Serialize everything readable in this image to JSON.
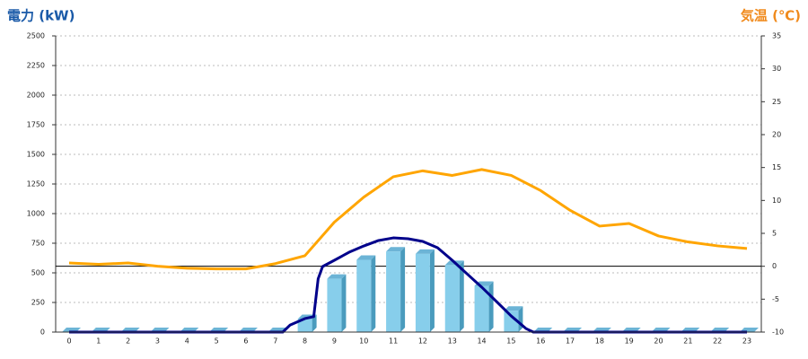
{
  "chart_data": {
    "type": "bar",
    "y_title": "電力 (kW)",
    "y2_title": "気温 (℃)",
    "categories": [
      "0",
      "1",
      "2",
      "3",
      "4",
      "5",
      "6",
      "7",
      "8",
      "9",
      "10",
      "11",
      "12",
      "13",
      "14",
      "15",
      "16",
      "17",
      "18",
      "19",
      "20",
      "21",
      "22",
      "23"
    ],
    "ylim": [
      0,
      2500
    ],
    "yticks": [
      0,
      250,
      500,
      750,
      1000,
      1250,
      1500,
      1750,
      2000,
      2250,
      2500
    ],
    "y2lim": [
      -10,
      35
    ],
    "y2ticks": [
      -10,
      -5,
      0,
      5,
      10,
      15,
      20,
      25,
      30,
      35
    ],
    "grid": true,
    "series": [
      {
        "type": "bar",
        "color": "#87ceeb",
        "values": [
          0,
          0,
          0,
          0,
          0,
          0,
          0,
          0,
          110,
          450,
          610,
          680,
          660,
          565,
          390,
          180,
          0,
          0,
          0,
          0,
          0,
          0,
          0,
          0
        ]
      },
      {
        "type": "line",
        "color": "#00008b",
        "x": [
          0,
          1,
          2,
          3,
          4,
          5,
          6,
          7,
          7.25,
          7.5,
          8,
          8.3,
          8.45,
          8.6,
          9,
          9.5,
          10,
          10.5,
          11,
          11.5,
          12,
          12.5,
          13,
          13.5,
          14,
          14.5,
          15,
          15.5,
          15.75,
          16,
          17,
          18,
          19,
          20,
          21,
          22,
          23
        ],
        "values": [
          0,
          0,
          0,
          0,
          0,
          0,
          0,
          0,
          0,
          60,
          114,
          130,
          450,
          553,
          606,
          674,
          727,
          773,
          795,
          788,
          765,
          712,
          606,
          492,
          379,
          258,
          136,
          30,
          0,
          0,
          0,
          0,
          0,
          0,
          0,
          0,
          0
        ]
      },
      {
        "type": "line",
        "color": "#ffa500",
        "axis": "y2",
        "values": [
          0.5,
          0.3,
          0.5,
          0,
          -0.3,
          -0.4,
          -0.4,
          0.4,
          1.6,
          6.7,
          10.5,
          13.6,
          14.5,
          13.8,
          14.7,
          13.8,
          11.5,
          8.5,
          6.1,
          6.5,
          4.6,
          3.7,
          3.1,
          2.7
        ]
      }
    ]
  }
}
